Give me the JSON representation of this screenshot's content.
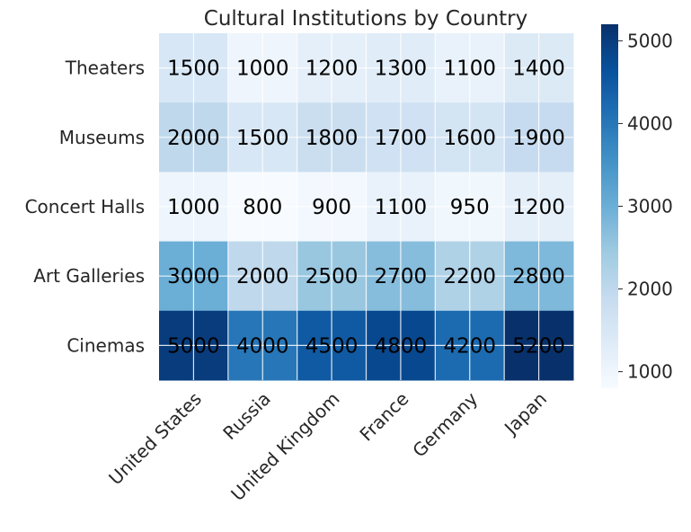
{
  "chart_data": {
    "type": "heatmap",
    "title": "Cultural Institutions by Country",
    "x_categories": [
      "United States",
      "Russia",
      "United Kingdom",
      "France",
      "Germany",
      "Japan"
    ],
    "y_categories": [
      "Theaters",
      "Museums",
      "Concert Halls",
      "Art Galleries",
      "Cinemas"
    ],
    "values": [
      [
        1500,
        1000,
        1200,
        1300,
        1100,
        1400
      ],
      [
        2000,
        1500,
        1800,
        1700,
        1600,
        1900
      ],
      [
        1000,
        800,
        900,
        1100,
        950,
        1200
      ],
      [
        3000,
        2000,
        2500,
        2700,
        2200,
        2800
      ],
      [
        5000,
        4000,
        4500,
        4800,
        4200,
        5200
      ]
    ],
    "colorscale": "Blues",
    "vmin": 800,
    "vmax": 5200,
    "colorbar_ticks": [
      1000,
      2000,
      3000,
      4000,
      5000
    ],
    "grid": true
  }
}
